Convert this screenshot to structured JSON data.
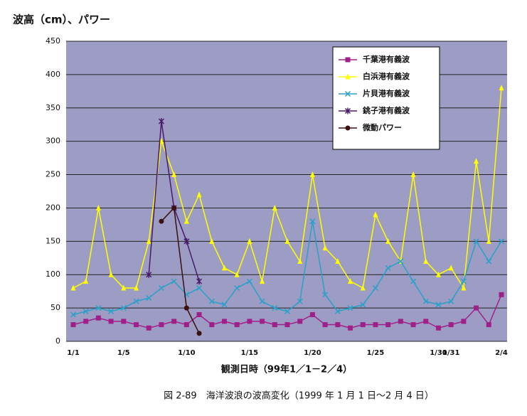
{
  "chart_data": {
    "type": "line",
    "title": "波高（cm）、パワー",
    "x_label": "観測日時（99年1／1－2／4）",
    "caption": "図 2-89　海洋波浪の波高変化（1999 年 1 月 1 日～2 月 4 日）",
    "categories": [
      "1/1",
      null,
      null,
      null,
      "1/5",
      null,
      null,
      null,
      null,
      "1/10",
      null,
      null,
      null,
      null,
      "1/15",
      null,
      null,
      null,
      null,
      "1/20",
      null,
      null,
      null,
      null,
      "1/25",
      null,
      null,
      null,
      null,
      "1/30",
      "1/31",
      null,
      null,
      null,
      "2/4"
    ],
    "ylim": [
      0,
      450
    ],
    "yticks": [
      0,
      50,
      100,
      150,
      200,
      250,
      300,
      350,
      400,
      450
    ],
    "grid": true,
    "legend": "upper right",
    "series": [
      {
        "name": "千葉港有義波",
        "color": "#a0208a",
        "marker": "square",
        "values": [
          25,
          30,
          35,
          30,
          30,
          25,
          20,
          25,
          30,
          25,
          40,
          25,
          30,
          25,
          30,
          30,
          25,
          25,
          30,
          40,
          25,
          25,
          20,
          25,
          25,
          25,
          30,
          25,
          30,
          20,
          25,
          30,
          50,
          25,
          70
        ]
      },
      {
        "name": "白浜港有義波",
        "color": "#ffff00",
        "marker": "triangle",
        "values": [
          80,
          90,
          200,
          100,
          80,
          80,
          150,
          300,
          250,
          180,
          220,
          150,
          110,
          100,
          150,
          90,
          200,
          150,
          120,
          250,
          140,
          120,
          90,
          80,
          190,
          150,
          120,
          250,
          120,
          100,
          110,
          80,
          270,
          150,
          380
        ]
      },
      {
        "name": "片貝港有義波",
        "color": "#2aa0c8",
        "marker": "x",
        "values": [
          40,
          45,
          50,
          45,
          50,
          60,
          65,
          80,
          90,
          70,
          80,
          60,
          55,
          80,
          90,
          60,
          50,
          45,
          60,
          180,
          70,
          45,
          50,
          55,
          80,
          110,
          120,
          90,
          60,
          55,
          60,
          90,
          150,
          120,
          150
        ]
      },
      {
        "name": "銚子港有義波",
        "color": "#4a1a6a",
        "marker": "star",
        "values": [
          null,
          null,
          null,
          null,
          null,
          null,
          100,
          330,
          200,
          150,
          90,
          null,
          null,
          null,
          null,
          null,
          null,
          null,
          null,
          null,
          null,
          null,
          null,
          null,
          null,
          null,
          null,
          null,
          null,
          null,
          null,
          null,
          null,
          null,
          null
        ]
      },
      {
        "name": "微動パワー",
        "color": "#3a1010",
        "marker": "circle",
        "values": [
          null,
          null,
          null,
          null,
          null,
          null,
          null,
          180,
          200,
          50,
          12,
          null,
          null,
          null,
          null,
          null,
          null,
          null,
          null,
          null,
          null,
          null,
          null,
          null,
          null,
          null,
          null,
          null,
          null,
          null,
          null,
          null,
          null,
          null,
          null
        ]
      }
    ]
  }
}
